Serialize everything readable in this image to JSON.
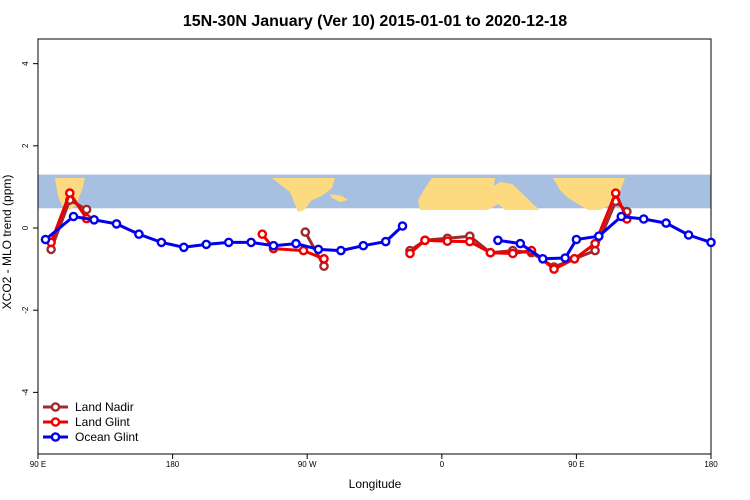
{
  "chart_data": {
    "type": "line",
    "title": "15N-30N January (Ver 10)   2015-01-01 to 2020-12-18",
    "xlabel": "Longitude",
    "ylabel": "XCO2 - MLO trend (ppm)",
    "xlim": [
      -90,
      270
    ],
    "ylim": [
      -5.5,
      4.6
    ],
    "x_ticks": [
      {
        "value": -90,
        "label": "90 E"
      },
      {
        "value": -18,
        "label": "180"
      },
      {
        "value": 54,
        "label": "90 W"
      },
      {
        "value": 126,
        "label": "0"
      },
      {
        "value": 198,
        "label": "90 E"
      },
      {
        "value": 270,
        "label": "180"
      }
    ],
    "y_ticks": [
      {
        "value": -4,
        "label": "-4"
      },
      {
        "value": -2,
        "label": "-2"
      },
      {
        "value": 0,
        "label": "0"
      },
      {
        "value": 2,
        "label": "2"
      },
      {
        "value": 4,
        "label": "4"
      }
    ],
    "map_band": {
      "ymin": 0.48,
      "ymax": 1.3,
      "ocean_color": "#a7bfe0",
      "land_color": "#fdd97f"
    },
    "legend_position": "bottom-left",
    "series": [
      {
        "name": "Land Nadir",
        "color": "#a0282e",
        "segments": [
          [
            [
              -83,
              -0.52
            ],
            [
              -73,
              0.68
            ],
            [
              -64,
              0.45
            ]
          ],
          [
            [
              53,
              -0.1
            ],
            [
              63,
              -0.93
            ]
          ],
          [
            [
              109,
              -0.55
            ],
            [
              117,
              -0.3
            ],
            [
              129,
              -0.25
            ],
            [
              141,
              -0.2
            ],
            [
              152,
              -0.6
            ],
            [
              164,
              -0.55
            ],
            [
              174,
              -0.6
            ],
            [
              186,
              -0.95
            ],
            [
              197,
              -0.75
            ],
            [
              208,
              -0.55
            ],
            [
              219,
              0.65
            ],
            [
              225,
              0.4
            ]
          ]
        ]
      },
      {
        "name": "Land Glint",
        "color": "#ee0000",
        "segments": [
          [
            [
              -83,
              -0.35
            ],
            [
              -73,
              0.85
            ],
            [
              -64,
              0.23
            ]
          ],
          [
            [
              30,
              -0.15
            ],
            [
              36,
              -0.5
            ],
            [
              52,
              -0.55
            ],
            [
              63,
              -0.75
            ]
          ],
          [
            [
              109,
              -0.62
            ],
            [
              117,
              -0.3
            ],
            [
              129,
              -0.32
            ],
            [
              141,
              -0.33
            ],
            [
              152,
              -0.6
            ],
            [
              164,
              -0.62
            ],
            [
              174,
              -0.55
            ],
            [
              186,
              -1.0
            ],
            [
              197,
              -0.75
            ],
            [
              208,
              -0.38
            ],
            [
              219,
              0.85
            ],
            [
              225,
              0.22
            ]
          ]
        ]
      },
      {
        "name": "Ocean Glint",
        "color": "#0000ee",
        "segments": [
          [
            [
              -86,
              -0.28
            ],
            [
              -71,
              0.28
            ],
            [
              -60,
              0.2
            ],
            [
              -48,
              0.1
            ],
            [
              -36,
              -0.15
            ],
            [
              -24,
              -0.35
            ],
            [
              -12,
              -0.47
            ],
            [
              0,
              -0.4
            ],
            [
              12,
              -0.35
            ],
            [
              24,
              -0.35
            ],
            [
              36,
              -0.43
            ],
            [
              48,
              -0.38
            ],
            [
              60,
              -0.52
            ],
            [
              72,
              -0.55
            ],
            [
              84,
              -0.43
            ],
            [
              96,
              -0.33
            ],
            [
              105,
              0.05
            ]
          ],
          [
            [
              156,
              -0.3
            ],
            [
              168,
              -0.38
            ],
            [
              180,
              -0.75
            ],
            [
              192,
              -0.73
            ],
            [
              198,
              -0.28
            ],
            [
              210,
              -0.2
            ],
            [
              222,
              0.28
            ],
            [
              234,
              0.22
            ],
            [
              246,
              0.12
            ],
            [
              258,
              -0.17
            ],
            [
              270,
              -0.35
            ]
          ]
        ]
      }
    ]
  }
}
